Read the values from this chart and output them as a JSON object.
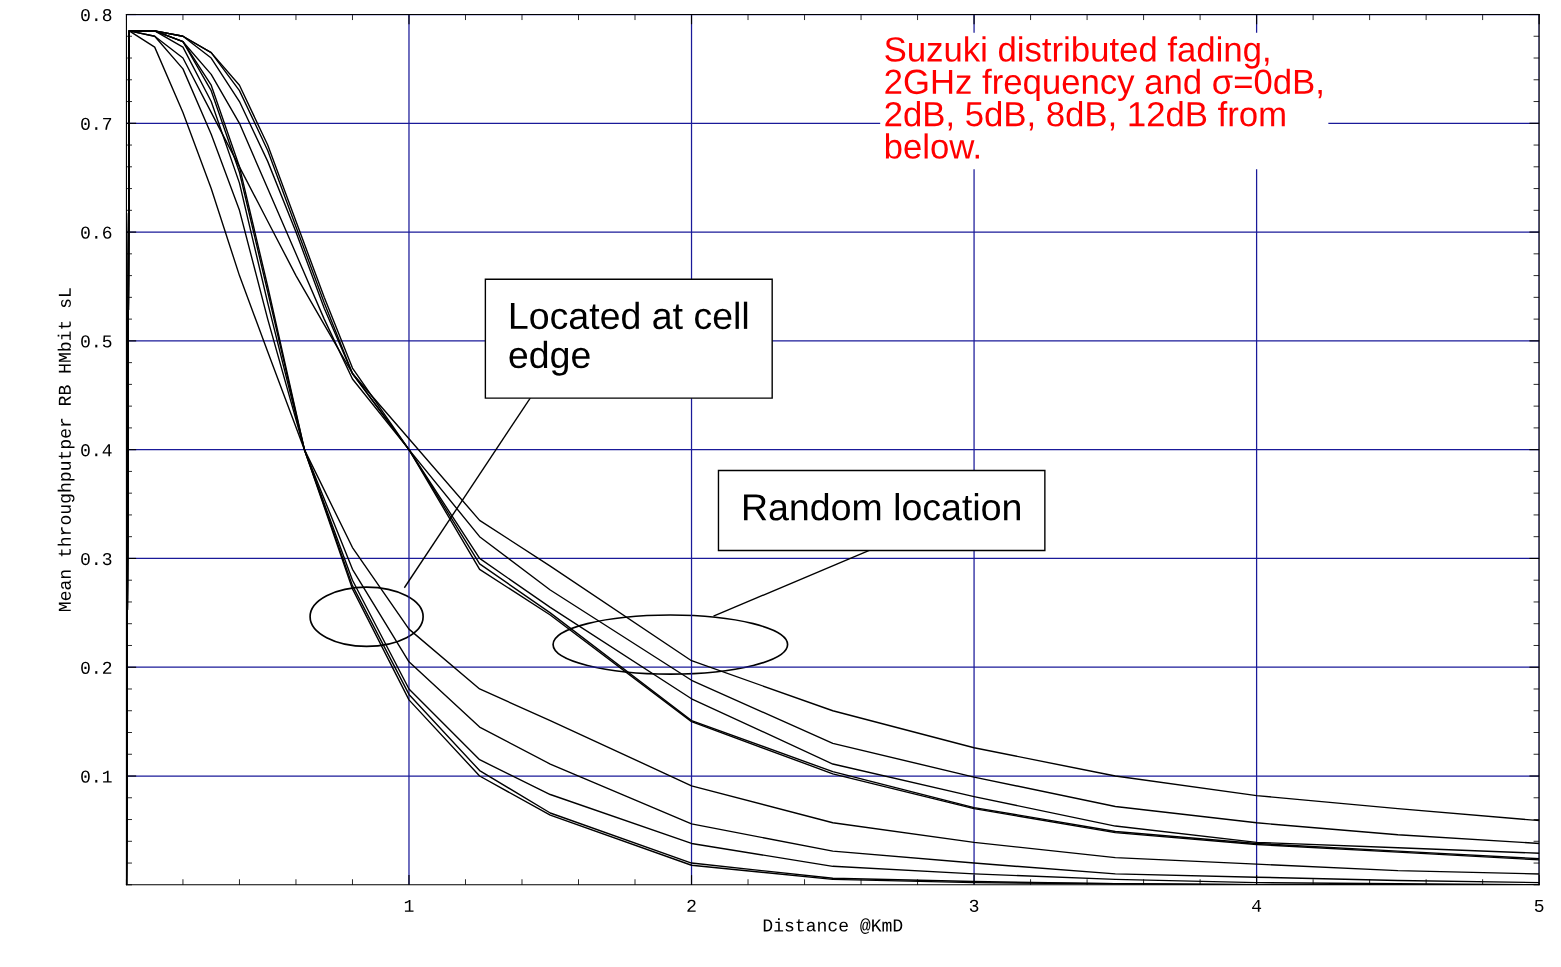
{
  "chart_data": {
    "type": "line",
    "xlabel": "Distance @KmD",
    "ylabel": "Mean throughputper RB HMbit sL",
    "xlim": [
      0,
      5
    ],
    "xticks": [
      1,
      2,
      3,
      4,
      5
    ],
    "ylim": [
      0,
      0.8
    ],
    "yticks": [
      0.1,
      0.2,
      0.3,
      0.4,
      0.5,
      0.6,
      0.7,
      0.8
    ],
    "grid": true,
    "legend": false,
    "marker": "none",
    "line_style": "solid",
    "annotations": [
      "Suzuki distributed fading,\n2GHz frequency and σ=0dB,\n2dB, 5dB, 8dB, 12dB from\nbelow.",
      "Located at cell\nedge",
      "Random location"
    ],
    "series": [
      {
        "color": "#000000",
        "x": [
          0,
          0.01,
          0.1,
          0.2,
          0.3,
          0.4,
          0.5,
          0.63,
          0.8,
          1.0,
          1.25,
          1.5,
          2.0,
          2.5,
          3.0,
          3.5,
          4.0,
          4.5,
          5.0
        ],
        "values": [
          0,
          0.785,
          0.77,
          0.71,
          0.64,
          0.56,
          0.49,
          0.4,
          0.31,
          0.235,
          0.18,
          0.151,
          0.091,
          0.057,
          0.039,
          0.025,
          0.019,
          0.013,
          0.01
        ]
      },
      {
        "color": "#000000",
        "x": [
          0,
          0.01,
          0.1,
          0.2,
          0.3,
          0.4,
          0.5,
          0.63,
          0.8,
          1.0,
          1.25,
          1.5,
          2.0,
          2.5,
          3.0,
          3.5,
          4.0,
          4.5,
          5.0
        ],
        "values": [
          0,
          0.785,
          0.78,
          0.75,
          0.69,
          0.62,
          0.52,
          0.4,
          0.29,
          0.205,
          0.145,
          0.111,
          0.056,
          0.031,
          0.02,
          0.01,
          0.007,
          0.004,
          0.002
        ]
      },
      {
        "color": "#000000",
        "x": [
          0,
          0.01,
          0.1,
          0.2,
          0.3,
          0.4,
          0.5,
          0.63,
          0.8,
          1.0,
          1.25,
          1.5,
          2.0,
          2.5,
          3.0,
          3.5,
          4.0,
          4.5,
          5.0
        ],
        "values": [
          0,
          0.785,
          0.785,
          0.77,
          0.72,
          0.645,
          0.535,
          0.4,
          0.28,
          0.18,
          0.115,
          0.083,
          0.038,
          0.017,
          0.01,
          0.005,
          0.002,
          0.001,
          0
        ]
      },
      {
        "color": "#000000",
        "x": [
          0,
          0.01,
          0.1,
          0.2,
          0.3,
          0.4,
          0.5,
          0.63,
          0.8,
          1.0,
          1.25,
          1.5,
          2.0,
          2.5,
          3.0,
          3.5,
          4.0,
          4.5,
          5.0
        ],
        "values": [
          0,
          0.785,
          0.785,
          0.775,
          0.73,
          0.655,
          0.545,
          0.4,
          0.275,
          0.175,
          0.105,
          0.066,
          0.02,
          0.006,
          0.003,
          0.001,
          0,
          0,
          0
        ]
      },
      {
        "color": "#000000",
        "x": [
          0,
          0.01,
          0.1,
          0.2,
          0.3,
          0.4,
          0.5,
          0.63,
          0.8,
          1.0,
          1.25,
          1.5,
          2.0,
          2.5,
          3.0,
          3.5,
          4.0,
          4.5,
          5.0
        ],
        "values": [
          0,
          0.785,
          0.785,
          0.775,
          0.735,
          0.66,
          0.55,
          0.4,
          0.272,
          0.17,
          0.1,
          0.064,
          0.018,
          0.005,
          0.002,
          0.001,
          0,
          0,
          0
        ]
      },
      {
        "color": "#000000",
        "x": [
          0,
          0.01,
          0.1,
          0.2,
          0.3,
          0.4,
          0.5,
          0.6,
          0.7,
          0.8,
          1.0,
          1.25,
          1.5,
          2.0,
          2.5,
          3.0,
          3.5,
          4.0,
          4.5,
          5.0
        ],
        "values": [
          0,
          0.785,
          0.78,
          0.76,
          0.71,
          0.66,
          0.61,
          0.56,
          0.515,
          0.47,
          0.41,
          0.335,
          0.293,
          0.206,
          0.16,
          0.126,
          0.1,
          0.082,
          0.07,
          0.059
        ]
      },
      {
        "color": "#000000",
        "x": [
          0,
          0.01,
          0.1,
          0.2,
          0.3,
          0.4,
          0.5,
          0.6,
          0.7,
          0.8,
          1.0,
          1.25,
          1.5,
          2.0,
          2.5,
          3.0,
          3.5,
          4.0,
          4.5,
          5.0
        ],
        "values": [
          0,
          0.785,
          0.785,
          0.775,
          0.745,
          0.7,
          0.64,
          0.58,
          0.52,
          0.465,
          0.4,
          0.32,
          0.271,
          0.188,
          0.13,
          0.099,
          0.072,
          0.057,
          0.046,
          0.038
        ]
      },
      {
        "color": "#000000",
        "x": [
          0,
          0.01,
          0.1,
          0.2,
          0.3,
          0.4,
          0.5,
          0.6,
          0.7,
          0.8,
          1.0,
          1.25,
          1.5,
          2.0,
          2.5,
          3.0,
          3.5,
          4.0,
          4.5,
          5.0
        ],
        "values": [
          0,
          0.785,
          0.785,
          0.78,
          0.76,
          0.72,
          0.665,
          0.6,
          0.53,
          0.47,
          0.4,
          0.3,
          0.255,
          0.171,
          0.111,
          0.081,
          0.054,
          0.039,
          0.034,
          0.029
        ]
      },
      {
        "color": "#000000",
        "x": [
          0,
          0.01,
          0.1,
          0.2,
          0.3,
          0.4,
          0.5,
          0.6,
          0.7,
          0.8,
          1.0,
          1.25,
          1.5,
          2.0,
          2.5,
          3.0,
          3.5,
          4.0,
          4.5,
          5.0
        ],
        "values": [
          0,
          0.785,
          0.785,
          0.78,
          0.765,
          0.73,
          0.675,
          0.605,
          0.535,
          0.47,
          0.4,
          0.295,
          0.25,
          0.151,
          0.104,
          0.071,
          0.049,
          0.038,
          0.031,
          0.024
        ]
      },
      {
        "color": "#000000",
        "x": [
          0,
          0.01,
          0.1,
          0.2,
          0.3,
          0.4,
          0.5,
          0.6,
          0.7,
          0.8,
          1.0,
          1.25,
          1.5,
          2.0,
          2.5,
          3.0,
          3.5,
          4.0,
          4.5,
          5.0
        ],
        "values": [
          0,
          0.785,
          0.785,
          0.78,
          0.765,
          0.735,
          0.68,
          0.61,
          0.54,
          0.475,
          0.4,
          0.29,
          0.248,
          0.15,
          0.102,
          0.07,
          0.048,
          0.037,
          0.03,
          0.023
        ]
      }
    ]
  }
}
